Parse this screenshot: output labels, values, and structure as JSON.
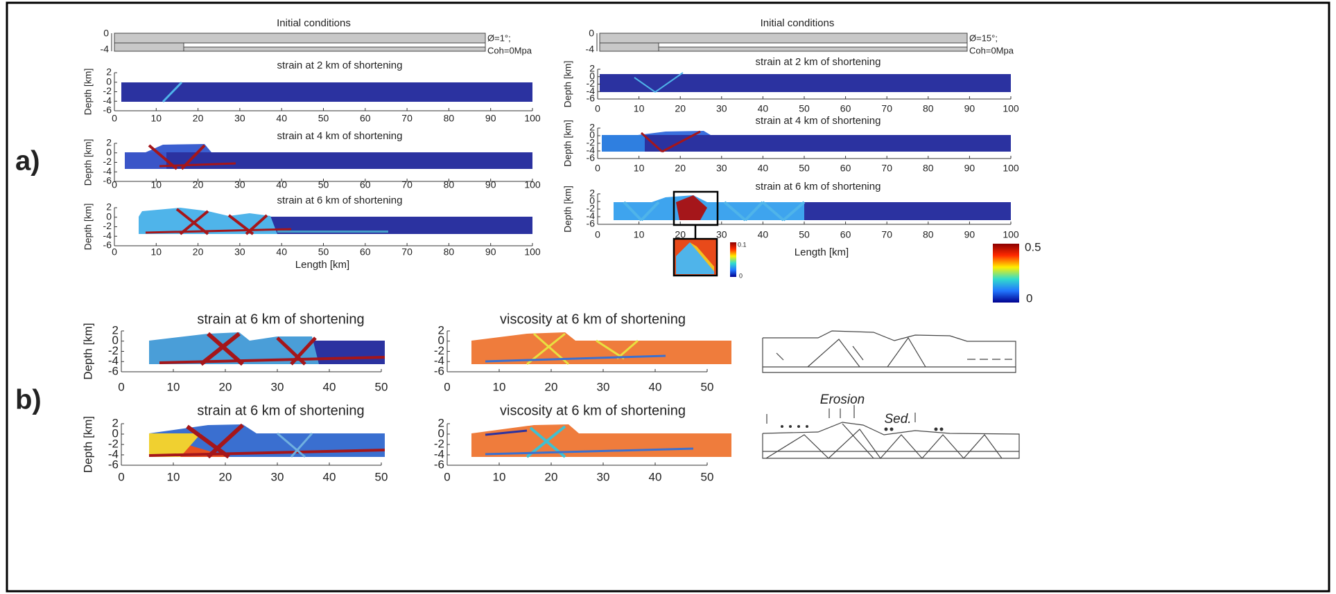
{
  "panel_a": {
    "label": "a)",
    "ylabel": "Depth [km]",
    "xlabel": "Length [km]",
    "xticks": [
      "0",
      "10",
      "20",
      "30",
      "40",
      "50",
      "60",
      "70",
      "80",
      "90",
      "100"
    ],
    "yticks": [
      "2",
      "0",
      "-2",
      "-4",
      "-6"
    ],
    "left": {
      "initial": {
        "title": "Initial conditions",
        "yticks": [
          "0",
          "-4"
        ],
        "notes": [
          "Ø=1°;",
          "Coh=0Mpa"
        ]
      },
      "titles": [
        "strain at 2 km of shortening",
        "strain at 4 km of shortening",
        "strain at 6 km of shortening"
      ]
    },
    "right": {
      "initial": {
        "title": "Initial conditions",
        "yticks": [
          "0",
          "-4"
        ],
        "notes": [
          "Ø=15°;",
          "Coh=0Mpa"
        ]
      },
      "titles": [
        "strain at 2 km of shortening",
        "strain at 4 km of shortening",
        "strain at 6 km of shortening"
      ]
    },
    "inset_colorbar": [
      "0.1",
      "0"
    ],
    "colorbar": [
      "0.5",
      "0"
    ]
  },
  "panel_b": {
    "label": "b)",
    "ylabel": "Depth [km]",
    "xticks": [
      "0",
      "10",
      "20",
      "30",
      "40",
      "50"
    ],
    "yticks": [
      "2",
      "0",
      "-2",
      "-4",
      "-6"
    ],
    "titles": [
      [
        "strain at 6 km of shortening",
        "viscosity at 6 km of shortening"
      ],
      [
        "strain at 6 km of shortening",
        "viscosity at 6 km of shortening"
      ]
    ],
    "sketch_labels": [
      "Erosion",
      "Sed."
    ]
  }
}
